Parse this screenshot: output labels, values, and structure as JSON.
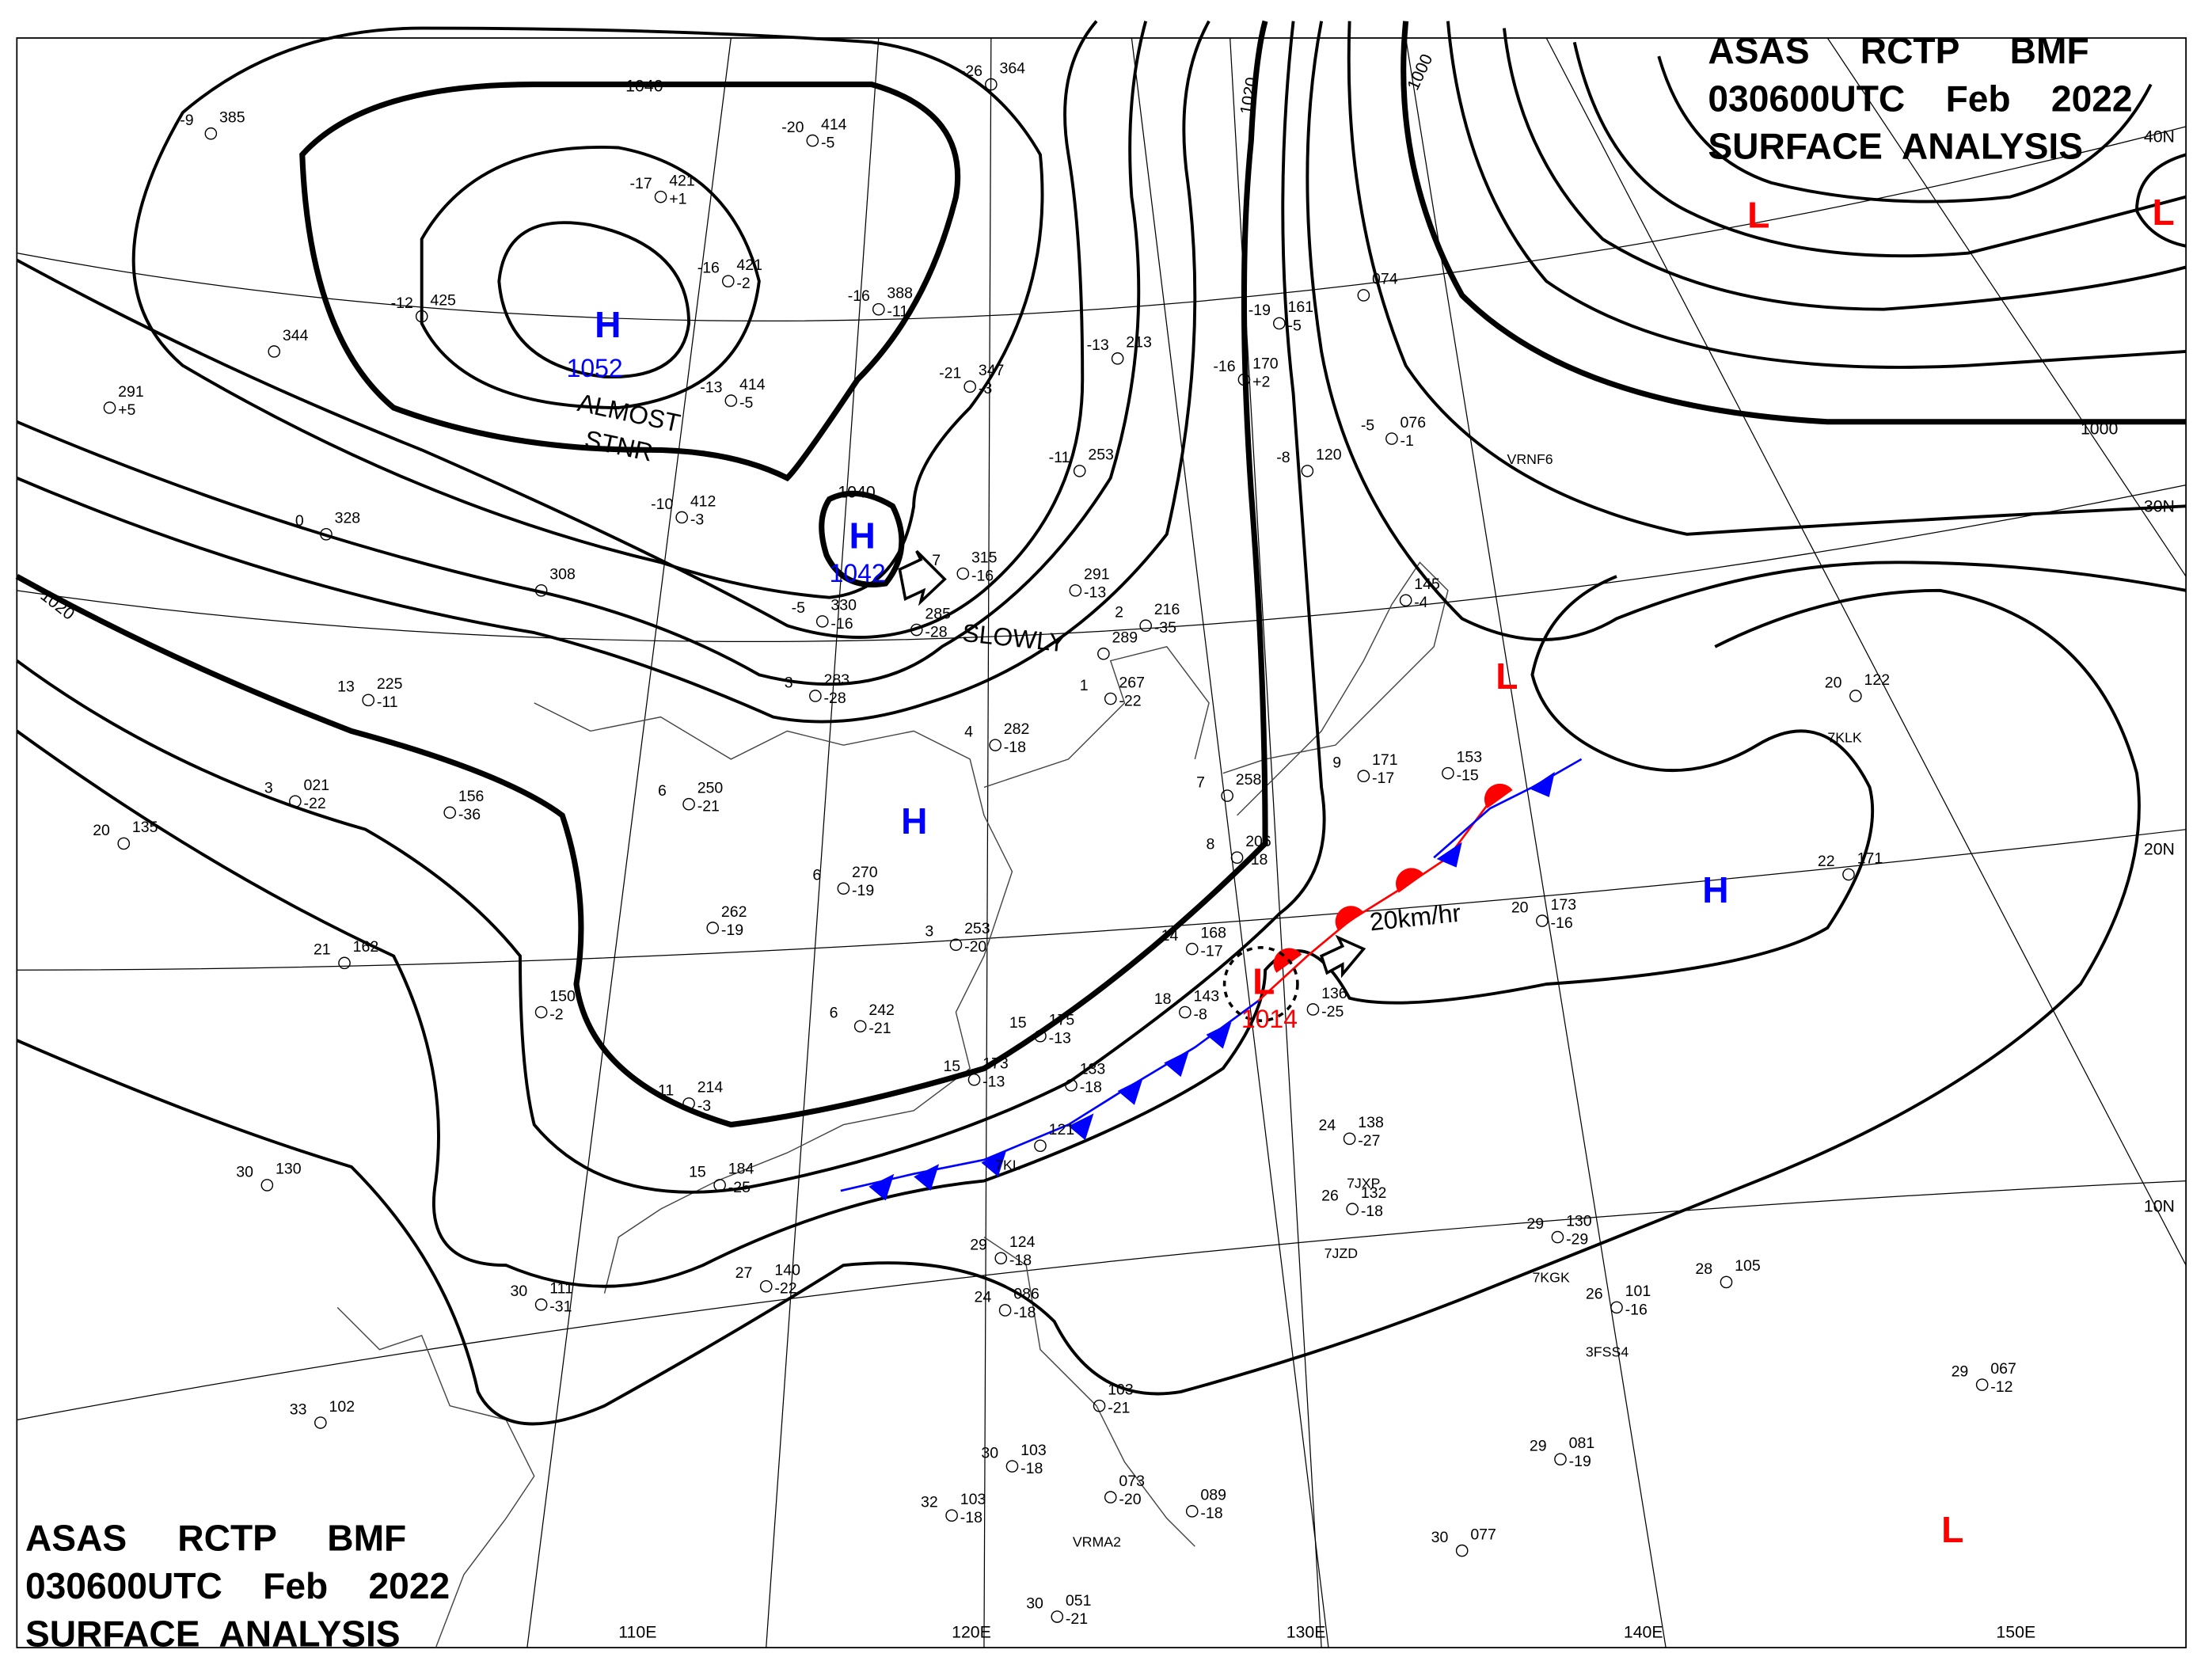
{
  "header_top_right": {
    "line1": "ASAS     RCTP     BMF",
    "line2": "030600UTC    Feb    2022",
    "line3": "SURFACE  ANALYSIS"
  },
  "header_bottom_left": {
    "line1": "ASAS     RCTP     BMF",
    "line2": "030600UTC    Feb    2022",
    "line3": "SURFACE  ANALYSIS"
  },
  "latitude_labels": [
    "40N",
    "30N",
    "20N",
    "10N"
  ],
  "longitude_labels": [
    "110E",
    "120E",
    "130E",
    "140E",
    "150E"
  ],
  "isobar_labels": [
    "1040",
    "1040",
    "1020",
    "1020",
    "1000",
    "1000"
  ],
  "pressure_centers": [
    {
      "type": "H",
      "value": "1052",
      "color": "#0000ff"
    },
    {
      "type": "H",
      "value": "1042",
      "color": "#0000ff"
    },
    {
      "type": "H",
      "value": "",
      "color": "#0000ff"
    },
    {
      "type": "H",
      "value": "",
      "color": "#0000ff"
    },
    {
      "type": "L",
      "value": "1014",
      "color": "#ff0000"
    },
    {
      "type": "L",
      "value": "",
      "color": "#ff0000"
    },
    {
      "type": "L",
      "value": "",
      "color": "#ff0000"
    },
    {
      "type": "L",
      "value": "",
      "color": "#ff0000"
    },
    {
      "type": "L",
      "value": "",
      "color": "#ff0000"
    }
  ],
  "annotations": {
    "almost": "ALMOST",
    "stnr": "STNR",
    "slowly": "SLOWLY",
    "speed": "20km/hr"
  },
  "fronts": {
    "cold_color": "#0000ff",
    "warm_color": "#ff0000"
  },
  "stations": [
    {
      "temp": "-26",
      "pressure": "364",
      "dew": ""
    },
    {
      "temp": "-20",
      "pressure": "414",
      "dew": "-5"
    },
    {
      "temp": "-9",
      "pressure": "385",
      "dew": ""
    },
    {
      "temp": "-17",
      "pressure": "421",
      "dew": "+1"
    },
    {
      "temp": "-16",
      "pressure": "421",
      "dew": "-2"
    },
    {
      "temp": "-12",
      "pressure": "425",
      "dew": ""
    },
    {
      "temp": "-16",
      "pressure": "388",
      "dew": "-11"
    },
    {
      "temp": "-13",
      "pressure": "414",
      "dew": "-5"
    },
    {
      "temp": "-10",
      "pressure": "412",
      "dew": "-3"
    },
    {
      "temp": "-21",
      "pressure": "347",
      "dew": "-3"
    },
    {
      "temp": "-13",
      "pressure": "213",
      "dew": ""
    },
    {
      "temp": "-11",
      "pressure": "253",
      "dew": ""
    },
    {
      "temp": "-19",
      "pressure": "161",
      "dew": "-5"
    },
    {
      "temp": "-16",
      "pressure": "170",
      "dew": "+2"
    },
    {
      "temp": "",
      "pressure": "074",
      "dew": ""
    },
    {
      "temp": "-5",
      "pressure": "076",
      "dew": "-1"
    },
    {
      "temp": "-8",
      "pressure": "120",
      "dew": ""
    },
    {
      "temp": "",
      "pressure": "344",
      "dew": ""
    },
    {
      "temp": "",
      "pressure": "291",
      "dew": "+5"
    },
    {
      "temp": "0",
      "pressure": "328",
      "dew": ""
    },
    {
      "temp": "",
      "pressure": "308",
      "dew": ""
    },
    {
      "temp": "-5",
      "pressure": "330",
      "dew": "-16"
    },
    {
      "temp": "7",
      "pressure": "315",
      "dew": "-16"
    },
    {
      "temp": "",
      "pressure": "291",
      "dew": "-13"
    },
    {
      "temp": "",
      "pressure": "285",
      "dew": "-28"
    },
    {
      "temp": "2",
      "pressure": "216",
      "dew": "-35"
    },
    {
      "temp": "",
      "pressure": "289",
      "dew": ""
    },
    {
      "temp": "1",
      "pressure": "267",
      "dew": "-22"
    },
    {
      "temp": "3",
      "pressure": "283",
      "dew": "-28"
    },
    {
      "temp": "13",
      "pressure": "225",
      "dew": "-11"
    },
    {
      "temp": "4",
      "pressure": "282",
      "dew": "-18"
    },
    {
      "temp": "6",
      "pressure": "250",
      "dew": "-21"
    },
    {
      "temp": "3",
      "pressure": "021",
      "dew": "-22"
    },
    {
      "temp": "",
      "pressure": "156",
      "dew": "-36"
    },
    {
      "temp": "20",
      "pressure": "135",
      "dew": ""
    },
    {
      "temp": "6",
      "pressure": "270",
      "dew": "-19"
    },
    {
      "temp": "",
      "pressure": "262",
      "dew": "-19"
    },
    {
      "temp": "3",
      "pressure": "253",
      "dew": "-20"
    },
    {
      "temp": "21",
      "pressure": "162",
      "dew": ""
    },
    {
      "temp": "",
      "pressure": "150",
      "dew": "-2"
    },
    {
      "temp": "6",
      "pressure": "242",
      "dew": "-21"
    },
    {
      "temp": "11",
      "pressure": "214",
      "dew": "-3"
    },
    {
      "temp": "15",
      "pressure": "175",
      "dew": "-13"
    },
    {
      "temp": "15",
      "pressure": "173",
      "dew": "-13"
    },
    {
      "temp": "",
      "pressure": "133",
      "dew": "-18"
    },
    {
      "temp": "15",
      "pressure": "184",
      "dew": "-25"
    },
    {
      "temp": "30",
      "pressure": "130",
      "dew": ""
    },
    {
      "temp": "",
      "pressure": "121",
      "dew": ""
    },
    {
      "temp": "7",
      "pressure": "258",
      "dew": ""
    },
    {
      "temp": "8",
      "pressure": "206",
      "dew": "-18"
    },
    {
      "temp": "14",
      "pressure": "168",
      "dew": "-17"
    },
    {
      "temp": "18",
      "pressure": "143",
      "dew": "-8"
    },
    {
      "temp": "",
      "pressure": "136",
      "dew": "-25"
    },
    {
      "temp": "9",
      "pressure": "171",
      "dew": "-17"
    },
    {
      "temp": "",
      "pressure": "153",
      "dew": "-15"
    },
    {
      "temp": "",
      "pressure": "145",
      "dew": "-4"
    },
    {
      "temp": "20",
      "pressure": "122",
      "dew": ""
    },
    {
      "temp": "22",
      "pressure": "171",
      "dew": ""
    },
    {
      "temp": "20",
      "pressure": "173",
      "dew": "-16"
    },
    {
      "temp": "24",
      "pressure": "138",
      "dew": "-27"
    },
    {
      "temp": "26",
      "pressure": "132",
      "dew": "-18"
    },
    {
      "temp": "29",
      "pressure": "130",
      "dew": "-29"
    },
    {
      "temp": "26",
      "pressure": "101",
      "dew": "-16"
    },
    {
      "temp": "28",
      "pressure": "105",
      "dew": ""
    },
    {
      "temp": "29",
      "pressure": "067",
      "dew": "-12"
    },
    {
      "temp": "29",
      "pressure": "081",
      "dew": "-19"
    },
    {
      "temp": "30",
      "pressure": "077",
      "dew": ""
    },
    {
      "temp": "27",
      "pressure": "140",
      "dew": "-22"
    },
    {
      "temp": "30",
      "pressure": "111",
      "dew": "-31"
    },
    {
      "temp": "33",
      "pressure": "102",
      "dew": ""
    },
    {
      "temp": "29",
      "pressure": "124",
      "dew": "-18"
    },
    {
      "temp": "24",
      "pressure": "086",
      "dew": "-18"
    },
    {
      "temp": "",
      "pressure": "103",
      "dew": "-21"
    },
    {
      "temp": "30",
      "pressure": "103",
      "dew": "-18"
    },
    {
      "temp": "32",
      "pressure": "103",
      "dew": "-18"
    },
    {
      "temp": "",
      "pressure": "073",
      "dew": "-20"
    },
    {
      "temp": "",
      "pressure": "089",
      "dew": "-18"
    },
    {
      "temp": "30",
      "pressure": "051",
      "dew": "-21"
    }
  ],
  "ship_ids": [
    "VRNF6",
    "7KLK",
    "7JXP",
    "7JZD",
    "7KGK",
    "3FSS4",
    "VRMA2",
    "7KL"
  ]
}
